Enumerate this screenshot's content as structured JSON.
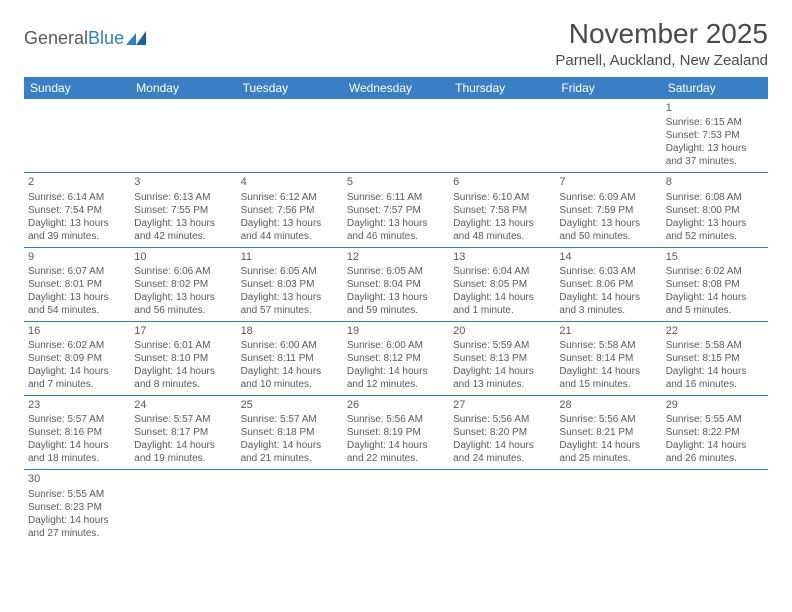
{
  "logo": {
    "text1": "General",
    "text2": "Blue"
  },
  "title": "November 2025",
  "location": "Parnell, Auckland, New Zealand",
  "colors": {
    "header_bg": "#3a7fc4",
    "header_text": "#ffffff",
    "border": "#3a7fc4",
    "body_text": "#5a5a5a",
    "background": "#ffffff"
  },
  "weekdays": [
    "Sunday",
    "Monday",
    "Tuesday",
    "Wednesday",
    "Thursday",
    "Friday",
    "Saturday"
  ],
  "weeks": [
    [
      null,
      null,
      null,
      null,
      null,
      null,
      {
        "d": "1",
        "sr": "Sunrise: 6:15 AM",
        "ss": "Sunset: 7:53 PM",
        "dl1": "Daylight: 13 hours",
        "dl2": "and 37 minutes."
      }
    ],
    [
      {
        "d": "2",
        "sr": "Sunrise: 6:14 AM",
        "ss": "Sunset: 7:54 PM",
        "dl1": "Daylight: 13 hours",
        "dl2": "and 39 minutes."
      },
      {
        "d": "3",
        "sr": "Sunrise: 6:13 AM",
        "ss": "Sunset: 7:55 PM",
        "dl1": "Daylight: 13 hours",
        "dl2": "and 42 minutes."
      },
      {
        "d": "4",
        "sr": "Sunrise: 6:12 AM",
        "ss": "Sunset: 7:56 PM",
        "dl1": "Daylight: 13 hours",
        "dl2": "and 44 minutes."
      },
      {
        "d": "5",
        "sr": "Sunrise: 6:11 AM",
        "ss": "Sunset: 7:57 PM",
        "dl1": "Daylight: 13 hours",
        "dl2": "and 46 minutes."
      },
      {
        "d": "6",
        "sr": "Sunrise: 6:10 AM",
        "ss": "Sunset: 7:58 PM",
        "dl1": "Daylight: 13 hours",
        "dl2": "and 48 minutes."
      },
      {
        "d": "7",
        "sr": "Sunrise: 6:09 AM",
        "ss": "Sunset: 7:59 PM",
        "dl1": "Daylight: 13 hours",
        "dl2": "and 50 minutes."
      },
      {
        "d": "8",
        "sr": "Sunrise: 6:08 AM",
        "ss": "Sunset: 8:00 PM",
        "dl1": "Daylight: 13 hours",
        "dl2": "and 52 minutes."
      }
    ],
    [
      {
        "d": "9",
        "sr": "Sunrise: 6:07 AM",
        "ss": "Sunset: 8:01 PM",
        "dl1": "Daylight: 13 hours",
        "dl2": "and 54 minutes."
      },
      {
        "d": "10",
        "sr": "Sunrise: 6:06 AM",
        "ss": "Sunset: 8:02 PM",
        "dl1": "Daylight: 13 hours",
        "dl2": "and 56 minutes."
      },
      {
        "d": "11",
        "sr": "Sunrise: 6:05 AM",
        "ss": "Sunset: 8:03 PM",
        "dl1": "Daylight: 13 hours",
        "dl2": "and 57 minutes."
      },
      {
        "d": "12",
        "sr": "Sunrise: 6:05 AM",
        "ss": "Sunset: 8:04 PM",
        "dl1": "Daylight: 13 hours",
        "dl2": "and 59 minutes."
      },
      {
        "d": "13",
        "sr": "Sunrise: 6:04 AM",
        "ss": "Sunset: 8:05 PM",
        "dl1": "Daylight: 14 hours",
        "dl2": "and 1 minute."
      },
      {
        "d": "14",
        "sr": "Sunrise: 6:03 AM",
        "ss": "Sunset: 8:06 PM",
        "dl1": "Daylight: 14 hours",
        "dl2": "and 3 minutes."
      },
      {
        "d": "15",
        "sr": "Sunrise: 6:02 AM",
        "ss": "Sunset: 8:08 PM",
        "dl1": "Daylight: 14 hours",
        "dl2": "and 5 minutes."
      }
    ],
    [
      {
        "d": "16",
        "sr": "Sunrise: 6:02 AM",
        "ss": "Sunset: 8:09 PM",
        "dl1": "Daylight: 14 hours",
        "dl2": "and 7 minutes."
      },
      {
        "d": "17",
        "sr": "Sunrise: 6:01 AM",
        "ss": "Sunset: 8:10 PM",
        "dl1": "Daylight: 14 hours",
        "dl2": "and 8 minutes."
      },
      {
        "d": "18",
        "sr": "Sunrise: 6:00 AM",
        "ss": "Sunset: 8:11 PM",
        "dl1": "Daylight: 14 hours",
        "dl2": "and 10 minutes."
      },
      {
        "d": "19",
        "sr": "Sunrise: 6:00 AM",
        "ss": "Sunset: 8:12 PM",
        "dl1": "Daylight: 14 hours",
        "dl2": "and 12 minutes."
      },
      {
        "d": "20",
        "sr": "Sunrise: 5:59 AM",
        "ss": "Sunset: 8:13 PM",
        "dl1": "Daylight: 14 hours",
        "dl2": "and 13 minutes."
      },
      {
        "d": "21",
        "sr": "Sunrise: 5:58 AM",
        "ss": "Sunset: 8:14 PM",
        "dl1": "Daylight: 14 hours",
        "dl2": "and 15 minutes."
      },
      {
        "d": "22",
        "sr": "Sunrise: 5:58 AM",
        "ss": "Sunset: 8:15 PM",
        "dl1": "Daylight: 14 hours",
        "dl2": "and 16 minutes."
      }
    ],
    [
      {
        "d": "23",
        "sr": "Sunrise: 5:57 AM",
        "ss": "Sunset: 8:16 PM",
        "dl1": "Daylight: 14 hours",
        "dl2": "and 18 minutes."
      },
      {
        "d": "24",
        "sr": "Sunrise: 5:57 AM",
        "ss": "Sunset: 8:17 PM",
        "dl1": "Daylight: 14 hours",
        "dl2": "and 19 minutes."
      },
      {
        "d": "25",
        "sr": "Sunrise: 5:57 AM",
        "ss": "Sunset: 8:18 PM",
        "dl1": "Daylight: 14 hours",
        "dl2": "and 21 minutes."
      },
      {
        "d": "26",
        "sr": "Sunrise: 5:56 AM",
        "ss": "Sunset: 8:19 PM",
        "dl1": "Daylight: 14 hours",
        "dl2": "and 22 minutes."
      },
      {
        "d": "27",
        "sr": "Sunrise: 5:56 AM",
        "ss": "Sunset: 8:20 PM",
        "dl1": "Daylight: 14 hours",
        "dl2": "and 24 minutes."
      },
      {
        "d": "28",
        "sr": "Sunrise: 5:56 AM",
        "ss": "Sunset: 8:21 PM",
        "dl1": "Daylight: 14 hours",
        "dl2": "and 25 minutes."
      },
      {
        "d": "29",
        "sr": "Sunrise: 5:55 AM",
        "ss": "Sunset: 8:22 PM",
        "dl1": "Daylight: 14 hours",
        "dl2": "and 26 minutes."
      }
    ],
    [
      {
        "d": "30",
        "sr": "Sunrise: 5:55 AM",
        "ss": "Sunset: 8:23 PM",
        "dl1": "Daylight: 14 hours",
        "dl2": "and 27 minutes."
      },
      null,
      null,
      null,
      null,
      null,
      null
    ]
  ]
}
